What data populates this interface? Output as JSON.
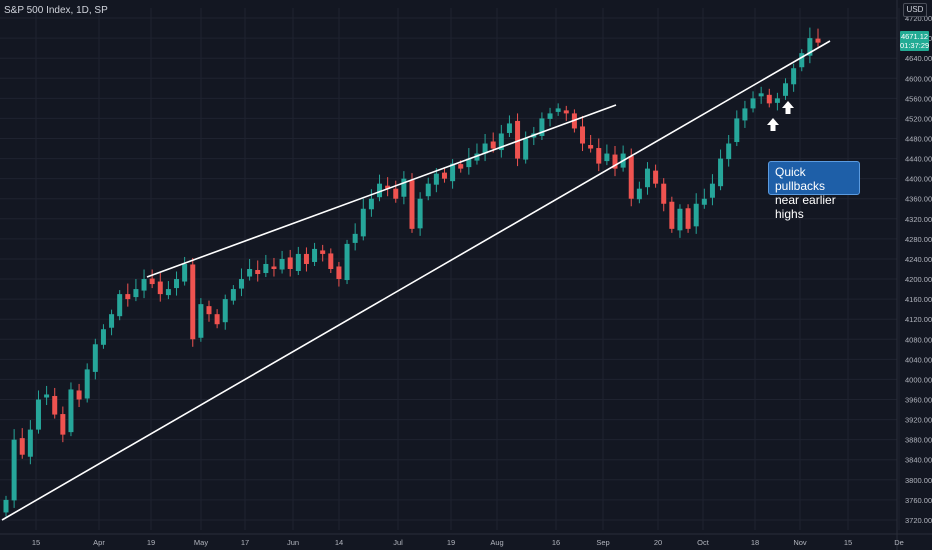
{
  "header": {
    "title": "S&P 500 Index, 1D, SP",
    "currency": "USD"
  },
  "price_tag": {
    "price": "4671.12",
    "countdown": "01:37:29"
  },
  "callout": {
    "line1": "Quick pullbacks",
    "line2": "near earlier highs"
  },
  "colors": {
    "background": "#131722",
    "up": "#26a69a",
    "down": "#ef5350",
    "trendline": "#ffffff",
    "callout": "#1e5fa8"
  },
  "chart_data": {
    "type": "candlestick",
    "title": "S&P 500 Index, 1D, SP",
    "ylim": [
      3700,
      4740
    ],
    "y_ticks": [
      3720,
      3760,
      3800,
      3840,
      3880,
      3920,
      3960,
      4000,
      4040,
      4080,
      4120,
      4160,
      4200,
      4240,
      4280,
      4320,
      4360,
      4400,
      4440,
      4480,
      4520,
      4560,
      4600,
      4640,
      4680,
      4720
    ],
    "x_ticks": [
      "15",
      "Apr",
      "19",
      "May",
      "17",
      "Jun",
      "14",
      "Jul",
      "19",
      "Aug",
      "16",
      "Sep",
      "20",
      "Oct",
      "18",
      "Nov",
      "15",
      "De"
    ],
    "grid": true,
    "close_series": [
      3760,
      3880,
      3850,
      3900,
      3960,
      3970,
      3930,
      3890,
      3980,
      3960,
      4020,
      4070,
      4100,
      4130,
      4170,
      4160,
      4180,
      4200,
      4190,
      4170,
      4180,
      4200,
      4230,
      4080,
      4150,
      4130,
      4110,
      4160,
      4180,
      4200,
      4220,
      4210,
      4230,
      4220,
      4240,
      4220,
      4250,
      4230,
      4260,
      4250,
      4220,
      4200,
      4270,
      4290,
      4340,
      4360,
      4390,
      4380,
      4360,
      4400,
      4300,
      4360,
      4390,
      4410,
      4400,
      4430,
      4420,
      4440,
      4450,
      4470,
      4460,
      4490,
      4510,
      4440,
      4480,
      4490,
      4520,
      4530,
      4540,
      4530,
      4500,
      4470,
      4460,
      4430,
      4450,
      4420,
      4450,
      4360,
      4380,
      4420,
      4390,
      4350,
      4300,
      4340,
      4300,
      4350,
      4360,
      4390,
      4440,
      4470,
      4520,
      4540,
      4560,
      4570,
      4550,
      4560,
      4590,
      4620,
      4650,
      4680,
      4671
    ],
    "trendlines": [
      {
        "from": [
          "Mar 24",
          4195
        ],
        "to": [
          "Sep 2",
          4545
        ]
      },
      {
        "from": [
          "Mar 4",
          3718
        ],
        "to": [
          "Nov 5",
          4705
        ]
      }
    ],
    "annotations": [
      "Quick pullbacks near earlier highs"
    ]
  }
}
